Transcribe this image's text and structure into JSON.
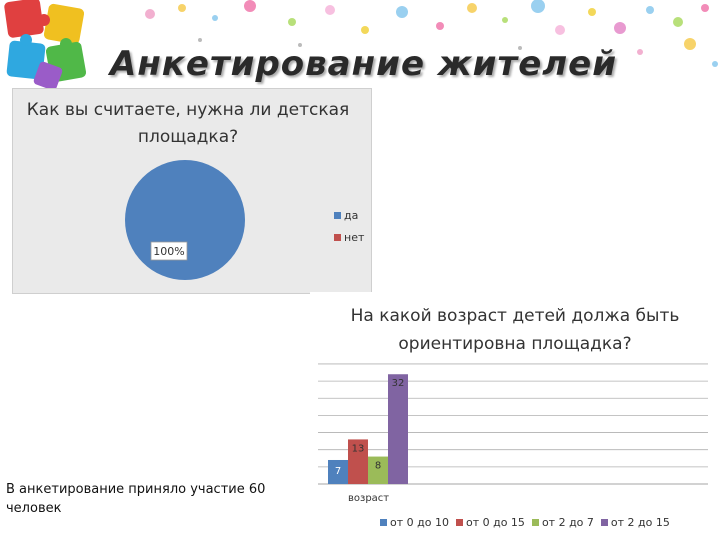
{
  "slide": {
    "title": "Анкетирование жителей",
    "note": "В анкетирование приняло участие 60 человек"
  },
  "colors": {
    "blue": "#4f81bd",
    "red": "#c0504d",
    "green": "#9bbb59",
    "purple": "#8064a2"
  },
  "chart_data": [
    {
      "type": "pie",
      "title": "Как вы считаете, нужна ли детская площадка?",
      "categories": [
        "да",
        "нет"
      ],
      "values": [
        100,
        0
      ],
      "data_labels": [
        "100%"
      ],
      "legend": "right"
    },
    {
      "type": "bar",
      "title": "На какой возраст детей должа быть ориентировна площадка?",
      "categories": [
        "возраст"
      ],
      "xlabel": "возраст",
      "series": [
        {
          "name": "от 0 до 10",
          "values": [
            7
          ]
        },
        {
          "name": "от 0 до 15",
          "values": [
            13
          ]
        },
        {
          "name": "от 2 до 7",
          "values": [
            8
          ]
        },
        {
          "name": "от 2 до 15",
          "values": [
            32
          ]
        }
      ],
      "ylim": [
        0,
        35
      ],
      "grid": true,
      "legend": "bottom"
    }
  ]
}
